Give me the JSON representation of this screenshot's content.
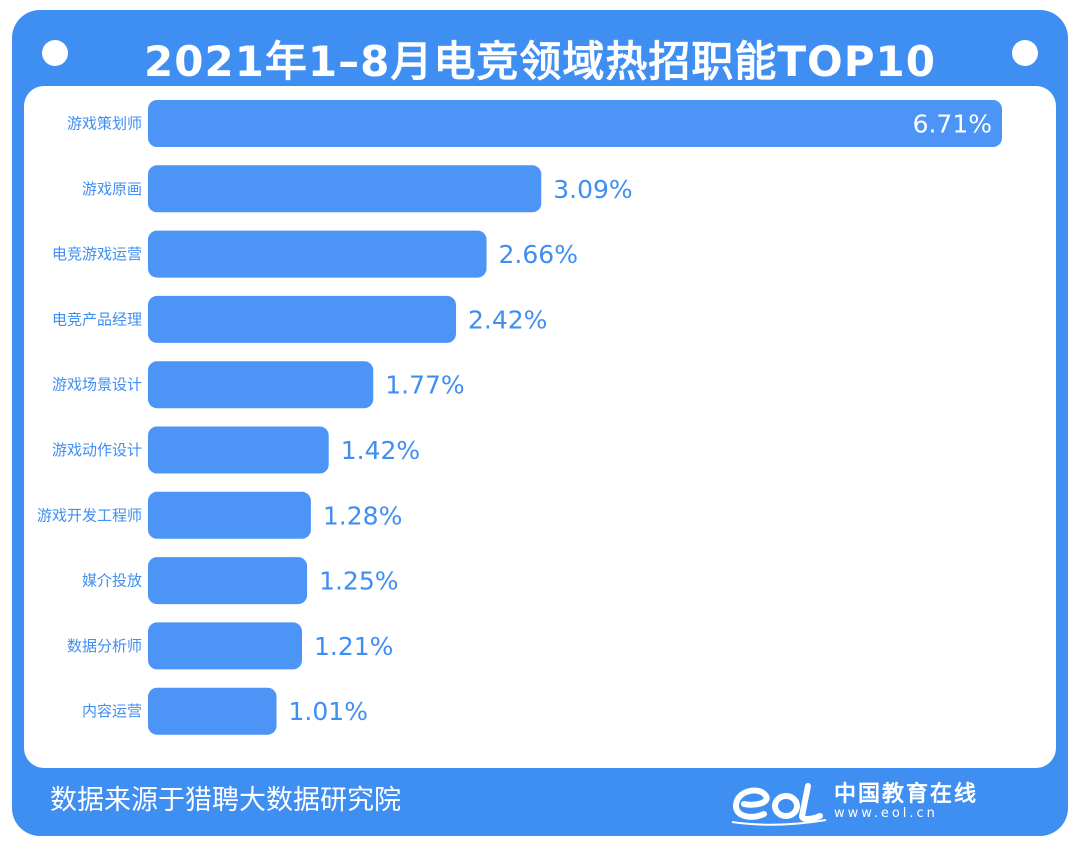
{
  "title": "2021年1–8月电竞领域热招职能TOP10",
  "footer": {
    "source": "数据来源于猎聘大数据研究院"
  },
  "brand": {
    "name": "中国教育在线",
    "url": "www.eol.cn"
  },
  "colors": {
    "frame": "#3f8ef2",
    "bar": "#4d94f7",
    "label": "#3f8ef2",
    "panel": "#ffffff"
  },
  "chart_data": {
    "type": "bar",
    "orientation": "horizontal",
    "categories": [
      "游戏策划师",
      "游戏原画",
      "电竞游戏运营",
      "电竞产品经理",
      "游戏场景设计",
      "游戏动作设计",
      "游戏开发工程师",
      "媒介投放",
      "数据分析师",
      "内容运营"
    ],
    "values": [
      6.71,
      3.09,
      2.66,
      2.42,
      1.77,
      1.42,
      1.28,
      1.25,
      1.21,
      1.01
    ],
    "value_labels": [
      "6.71%",
      "3.09%",
      "2.66%",
      "2.42%",
      "1.77%",
      "1.42%",
      "1.28%",
      "1.25%",
      "1.21%",
      "1.01%"
    ],
    "xlim": [
      0,
      6.71
    ],
    "grid": false,
    "legend": "none"
  }
}
